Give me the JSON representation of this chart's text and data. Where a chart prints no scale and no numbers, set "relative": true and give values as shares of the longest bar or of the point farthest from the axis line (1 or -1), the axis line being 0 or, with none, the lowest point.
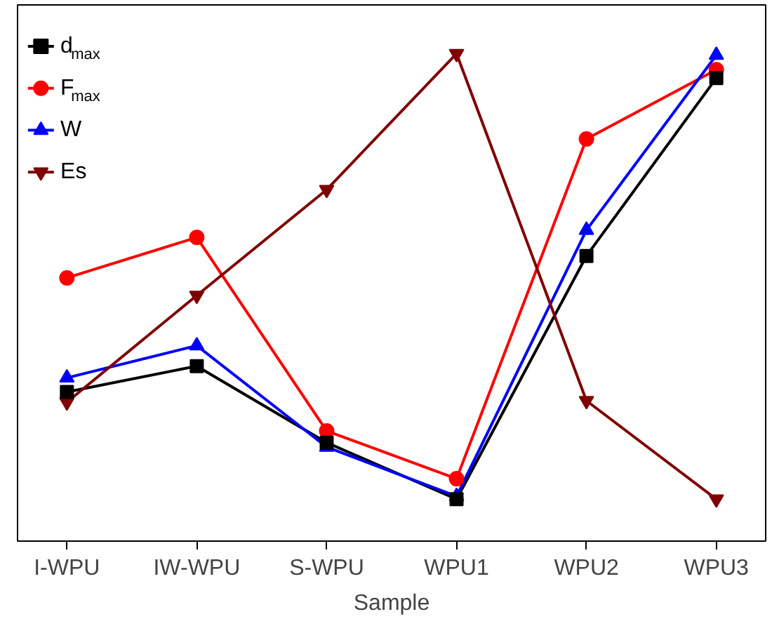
{
  "chart_data": {
    "type": "line",
    "xlabel": "Sample",
    "relative": true,
    "legend": "top left",
    "grid": false,
    "categories": [
      "I-WPU",
      "IW-WPU",
      "S-WPU",
      "WPU1",
      "WPU2",
      "WPU3"
    ],
    "series": [
      {
        "name": "d$_{max}$",
        "color": "#000000",
        "marker": "square",
        "values": [
          0.306,
          0.359,
          0.202,
          0.086,
          0.585,
          0.95
        ]
      },
      {
        "name": "F$_{max}$",
        "color": "#ff0000",
        "marker": "circle",
        "values": [
          0.54,
          0.623,
          0.226,
          0.128,
          0.825,
          0.967
        ]
      },
      {
        "name": "W",
        "color": "#0000ff",
        "marker": "triangle",
        "values": [
          0.335,
          0.401,
          0.193,
          0.092,
          0.638,
          0.997
        ]
      },
      {
        "name": "Es",
        "color": "#800000",
        "marker": "triangle_down",
        "values": [
          0.285,
          0.504,
          0.721,
          1.0,
          0.288,
          0.086
        ]
      }
    ]
  }
}
